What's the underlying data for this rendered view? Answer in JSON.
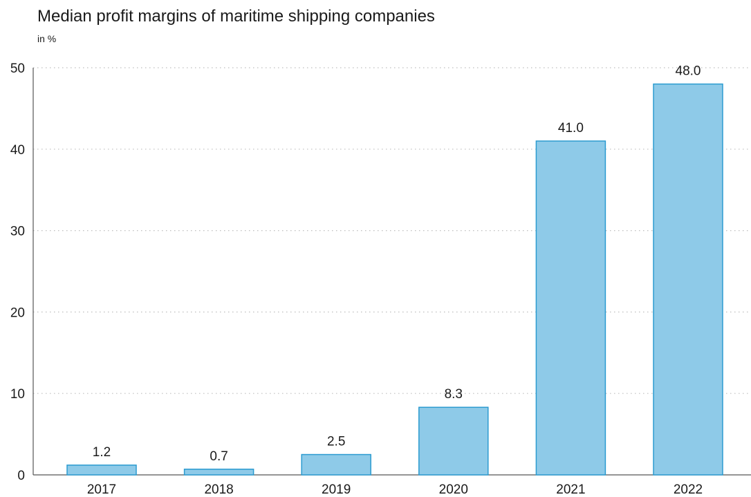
{
  "title": "Median profit margins of maritime shipping companies",
  "subtitle": "in %",
  "colors": {
    "bar_fill": "#8ecae8",
    "bar_stroke": "#2b9bd0",
    "grid": "#bdbdbd",
    "axis": "#555555"
  },
  "chart_data": {
    "type": "bar",
    "title": "Median profit margins of maritime shipping companies",
    "subtitle": "in %",
    "xlabel": "",
    "ylabel": "",
    "categories": [
      "2017",
      "2018",
      "2019",
      "2020",
      "2021",
      "2022"
    ],
    "values": [
      1.2,
      0.7,
      2.5,
      8.3,
      41.0,
      48.0
    ],
    "data_labels": [
      "1.2",
      "0.7",
      "2.5",
      "8.3",
      "41.0",
      "48.0"
    ],
    "ylim": [
      0,
      50
    ],
    "yticks": [
      0,
      10,
      20,
      30,
      40,
      50
    ],
    "grid": "horizontal-dotted",
    "legend": "none"
  }
}
